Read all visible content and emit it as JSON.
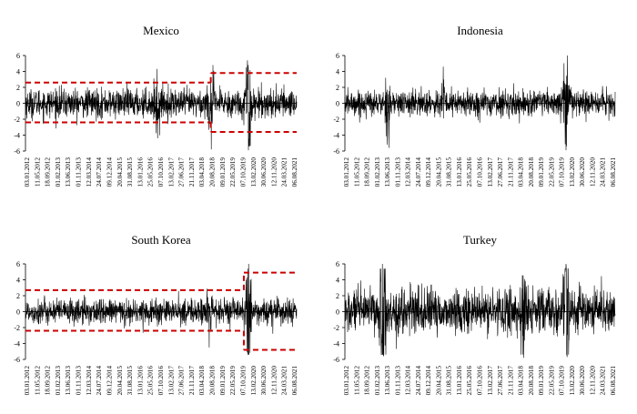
{
  "chart_data": [
    {
      "type": "line",
      "title": "Mexico",
      "ylim": [
        -6,
        6
      ],
      "yticks": [
        -6,
        -4,
        -2,
        0,
        2,
        4,
        6
      ],
      "x_range": [
        "03.01.2012",
        "31.12.2021"
      ],
      "xtick_labels": [
        "03.01.2012",
        "11.05.2012",
        "18.09.2012",
        "01.02.2013",
        "13.06.2013",
        "01.11.2013",
        "12.03.2014",
        "24.07.2014",
        "09.12.2014",
        "20.04.2015",
        "31.08.2015",
        "13.01.2016",
        "25.05.2016",
        "07.10.2016",
        "13.02.2017",
        "27.06.2017",
        "21.11.2017",
        "03.04.2018",
        "20.08.2018",
        "09.01.2019",
        "22.05.2019",
        "07.10.2019",
        "13.02.2020",
        "30.06.2020",
        "12.11.2020",
        "24.03.2021",
        "06.08.2021"
      ],
      "series_color": "#000000",
      "volatility_profile": {
        "base_amplitude": 0.9,
        "spikes": [
          {
            "date": "15.11.2016",
            "value": -4.4
          },
          {
            "date": "07.11.2018",
            "value": -5.8
          },
          {
            "date": "18.03.2020",
            "value": 4.8
          },
          {
            "date": "23.03.2020",
            "value": -5.9
          }
        ]
      },
      "bands": [
        {
          "from": "03.01.2012",
          "to": "01.11.2018",
          "upper": 2.6,
          "lower": -2.4
        },
        {
          "from": "01.11.2018",
          "to": "31.12.2021",
          "upper": 3.8,
          "lower": -3.6
        }
      ],
      "band_color": "#cc0000"
    },
    {
      "type": "line",
      "title": "Indonesia",
      "ylim": [
        -6,
        6
      ],
      "yticks": [
        -6,
        -4,
        -2,
        0,
        2,
        4,
        6
      ],
      "x_range": [
        "03.01.2012",
        "31.12.2021"
      ],
      "xtick_labels": [
        "03.01.2012",
        "11.05.2012",
        "18.09.2012",
        "01.02.2013",
        "13.06.2013",
        "01.11.2013",
        "12.03.2014",
        "24.07.2014",
        "09.12.2014",
        "20.04.2015",
        "31.08.2015",
        "13.01.2016",
        "25.05.2016",
        "07.10.2016",
        "13.02.2017",
        "27.06.2017",
        "21.11.2017",
        "03.04.2018",
        "20.08.2018",
        "09.01.2019",
        "22.05.2019",
        "07.10.2019",
        "13.02.2020",
        "30.06.2020",
        "12.11.2020",
        "24.03.2021",
        "06.08.2021"
      ],
      "series_color": "#000000",
      "volatility_profile": {
        "base_amplitude": 0.8,
        "spikes": [
          {
            "date": "20.08.2013",
            "value": -5.6
          },
          {
            "date": "24.08.2015",
            "value": 4.6
          },
          {
            "date": "09.03.2020",
            "value": -5.9
          },
          {
            "date": "24.03.2020",
            "value": 6.0
          }
        ]
      },
      "bands": []
    },
    {
      "type": "line",
      "title": "South Korea",
      "ylim": [
        -6,
        6
      ],
      "yticks": [
        -6,
        -4,
        -2,
        0,
        2,
        4,
        6
      ],
      "x_range": [
        "03.01.2012",
        "31.12.2021"
      ],
      "xtick_labels": [
        "03.01.2012",
        "11.05.2012",
        "18.09.2012",
        "01.02.2013",
        "13.06.2013",
        "01.11.2013",
        "12.03.2014",
        "24.07.2014",
        "09.12.2014",
        "20.04.2015",
        "31.08.2015",
        "13.01.2016",
        "25.05.2016",
        "07.10.2016",
        "13.02.2017",
        "27.06.2017",
        "21.11.2017",
        "03.04.2018",
        "20.08.2018",
        "09.01.2019",
        "22.05.2019",
        "07.10.2019",
        "13.02.2020",
        "30.06.2020",
        "12.11.2020",
        "24.03.2021",
        "06.08.2021"
      ],
      "series_color": "#000000",
      "volatility_profile": {
        "base_amplitude": 0.8,
        "spikes": [
          {
            "date": "11.10.2018",
            "value": -4.5
          },
          {
            "date": "19.03.2020",
            "value": -4.8
          },
          {
            "date": "24.03.2020",
            "value": 6.0
          }
        ]
      },
      "bands": [
        {
          "from": "03.01.2012",
          "to": "20.01.2020",
          "upper": 2.7,
          "lower": -2.4
        },
        {
          "from": "20.01.2020",
          "to": "31.12.2021",
          "upper": 4.9,
          "lower": -4.8
        }
      ],
      "band_color": "#cc0000"
    },
    {
      "type": "line",
      "title": "Turkey",
      "ylim": [
        -6,
        6
      ],
      "yticks": [
        -6,
        -4,
        -2,
        0,
        2,
        4,
        6
      ],
      "x_range": [
        "03.01.2012",
        "31.12.2021"
      ],
      "xtick_labels": [
        "03.01.2012",
        "11.05.2012",
        "18.09.2012",
        "01.02.2013",
        "13.06.2013",
        "01.11.2013",
        "12.03.2014",
        "24.07.2014",
        "09.12.2014",
        "20.04.2015",
        "31.08.2015",
        "13.01.2016",
        "25.05.2016",
        "07.10.2016",
        "13.02.2017",
        "27.06.2017",
        "21.11.2017",
        "03.04.2018",
        "20.08.2018",
        "09.01.2019",
        "22.05.2019",
        "07.10.2019",
        "13.02.2020",
        "30.06.2020",
        "12.11.2020",
        "24.03.2021",
        "06.08.2021"
      ],
      "series_color": "#000000",
      "volatility_profile": {
        "base_amplitude": 1.4,
        "spikes": [
          {
            "date": "22.05.2013",
            "value": 6.0
          },
          {
            "date": "10.06.2013",
            "value": -5.6
          },
          {
            "date": "13.08.2018",
            "value": -5.8
          },
          {
            "date": "09.03.2020",
            "value": 6.0
          },
          {
            "date": "23.03.2020",
            "value": -5.7
          }
        ]
      },
      "bands": []
    }
  ]
}
